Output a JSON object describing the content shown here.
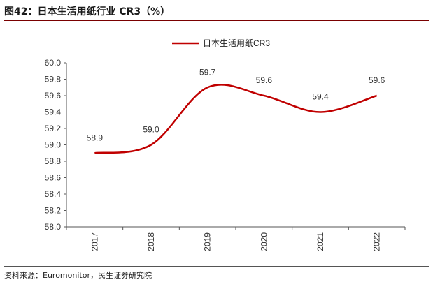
{
  "figure": {
    "title": "图42：日本生活用纸行业 CR3（%）",
    "source": "资料来源：Euromonitor，民生证券研究院"
  },
  "chart_data": {
    "type": "line",
    "categories": [
      "2017",
      "2018",
      "2019",
      "2020",
      "2021",
      "2022"
    ],
    "series": [
      {
        "name": "日本生活用纸CR3",
        "values": [
          58.9,
          59.0,
          59.7,
          59.6,
          59.4,
          59.6
        ],
        "color": "#c00000"
      }
    ],
    "data_labels": [
      "58.9",
      "59.0",
      "59.7",
      "59.6",
      "59.4",
      "59.6"
    ],
    "ylim": [
      58.0,
      60.0
    ],
    "yticks": [
      58.0,
      58.2,
      58.4,
      58.6,
      58.8,
      59.0,
      59.2,
      59.4,
      59.6,
      59.8,
      60.0
    ],
    "ytick_labels": [
      "58.0",
      "58.2",
      "58.4",
      "58.6",
      "58.8",
      "59.0",
      "59.2",
      "59.4",
      "59.6",
      "59.8",
      "60.0"
    ],
    "legend_position": "top-center",
    "grid": false,
    "smooth": true
  }
}
